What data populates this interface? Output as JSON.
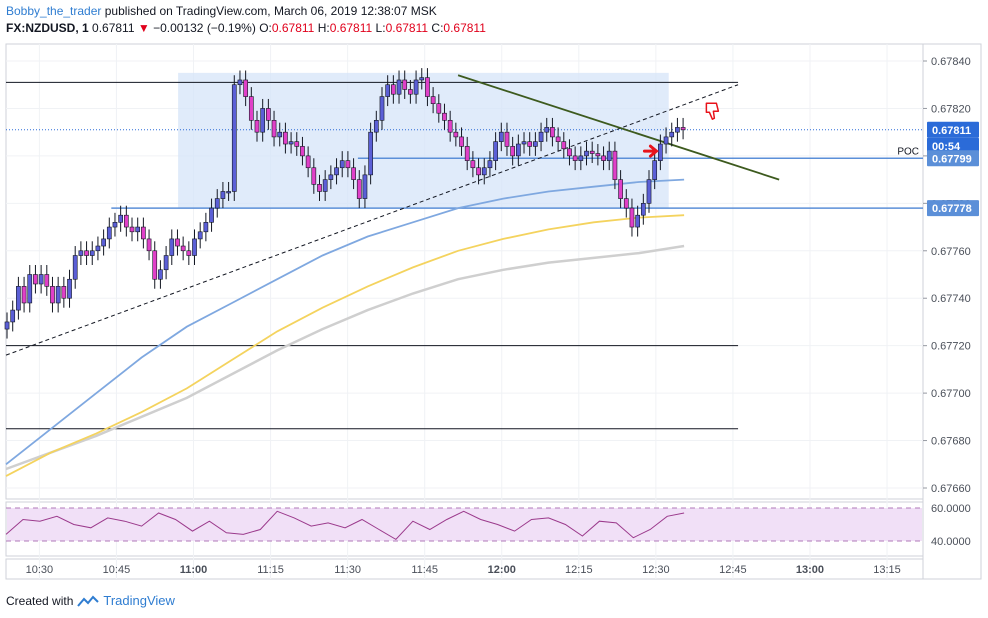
{
  "header": {
    "user": "Bobby_the_trader",
    "published": "published on TradingView.com, March 06, 2019 12:38:07 MSK",
    "symbol": "FX:NZDUSD, 1",
    "last": "0.67811",
    "change": "−0.00132 (−0.19%)",
    "open_label": "O:",
    "open": "0.67811",
    "high_label": "H:",
    "high": "0.67811",
    "low_label": "L:",
    "low": "0.67811",
    "close_label": "C:",
    "close": "0.67811"
  },
  "footer": {
    "created_with": "Created with",
    "brand": "TradingView"
  },
  "colors": {
    "bull": "#5b5fd6",
    "bear": "#e040c8",
    "ma_fast": "#7fa8e0",
    "ma_mid": "#f4d35e",
    "ma_slow": "#cfcfcf",
    "box": "#d6e4f8",
    "level": "#5b8fd8",
    "trend": "#3d5a1e",
    "price_tag": "#2b6bd8",
    "rsi_band": "#f1e0f7",
    "rsi_line": "#9b3a8c",
    "arrow": "#e8131b"
  },
  "chart_data": {
    "type": "candlestick",
    "y_axis": {
      "min": 0.6765,
      "max": 0.6785,
      "ticks": [
        "0.67840",
        "0.67820",
        "0.67800",
        "0.67780",
        "0.67760",
        "0.67740",
        "0.67720",
        "0.67700",
        "0.67680",
        "0.67660"
      ],
      "tick_values": [
        0.6784,
        0.6782,
        0.678,
        0.6778,
        0.6776,
        0.6774,
        0.6772,
        0.677,
        0.6768,
        0.6766
      ]
    },
    "x_axis": {
      "ticks": [
        "10:30",
        "10:45",
        "11:00",
        "11:15",
        "11:30",
        "11:45",
        "12:00",
        "12:15",
        "12:30",
        "12:45",
        "13:00",
        "13:15"
      ],
      "tick_minutes": [
        630,
        645,
        660,
        675,
        690,
        705,
        720,
        735,
        750,
        765,
        780,
        795
      ],
      "bold": [
        "11:00",
        "12:00",
        "13:00"
      ],
      "range": [
        623.5,
        802
      ]
    },
    "price_labels": [
      {
        "text": "0.67811",
        "value": 0.67811,
        "style": "last"
      },
      {
        "text": "00:54",
        "value": 0.67806,
        "style": "timer"
      },
      {
        "text": "0.67799",
        "value": 0.67799,
        "style": "level"
      },
      {
        "text": "0.67778",
        "value": 0.67778,
        "style": "level"
      }
    ],
    "poc_label": "POC",
    "horizontal_lines": [
      {
        "value": 0.67831,
        "color": "#131722"
      },
      {
        "value": 0.6772,
        "color": "#131722"
      },
      {
        "value": 0.67685,
        "color": "#131722"
      }
    ],
    "candles_close": [
      0.6773,
      0.67735,
      0.67745,
      0.67738,
      0.6775,
      0.67746,
      0.6775,
      0.67745,
      0.67738,
      0.67745,
      0.6774,
      0.67748,
      0.67758,
      0.6776,
      0.67758,
      0.6776,
      0.67762,
      0.67765,
      0.6777,
      0.67772,
      0.67775,
      0.6777,
      0.67768,
      0.6777,
      0.67765,
      0.6776,
      0.67748,
      0.67752,
      0.67758,
      0.67765,
      0.67762,
      0.6776,
      0.67758,
      0.67765,
      0.67768,
      0.67772,
      0.67778,
      0.67782,
      0.67785,
      0.67785,
      0.6783,
      0.67832,
      0.67825,
      0.67815,
      0.6781,
      0.6782,
      0.67815,
      0.67808,
      0.6781,
      0.67805,
      0.67806,
      0.67804,
      0.678,
      0.67795,
      0.67788,
      0.67785,
      0.6779,
      0.67792,
      0.67795,
      0.67798,
      0.67795,
      0.6779,
      0.67782,
      0.67792,
      0.6781,
      0.67815,
      0.67825,
      0.6783,
      0.67826,
      0.67832,
      0.67828,
      0.67826,
      0.67832,
      0.67833,
      0.67825,
      0.67822,
      0.67818,
      0.67815,
      0.6781,
      0.67808,
      0.67804,
      0.67798,
      0.67795,
      0.67792,
      0.67795,
      0.67798,
      0.67806,
      0.6781,
      0.67804,
      0.678,
      0.67805,
      0.67806,
      0.67804,
      0.67806,
      0.6781,
      0.67812,
      0.67808,
      0.67806,
      0.67803,
      0.678,
      0.67798,
      0.678,
      0.67802,
      0.67801,
      0.678,
      0.67798,
      0.67802,
      0.6779,
      0.67782,
      0.67778,
      0.6777,
      0.67775,
      0.6778,
      0.6779,
      0.67798,
      0.67805,
      0.67808,
      0.6781,
      0.67812,
      0.67811
    ],
    "ma_fast": [
      0.6767,
      0.67685,
      0.677,
      0.67715,
      0.67728,
      0.67738,
      0.67748,
      0.67758,
      0.67766,
      0.67772,
      0.67778,
      0.67782,
      0.67785,
      0.67787,
      0.67789,
      0.6779
    ],
    "ma_mid": [
      0.67665,
      0.67675,
      0.67683,
      0.67692,
      0.67702,
      0.67714,
      0.67726,
      0.67736,
      0.67745,
      0.67753,
      0.6776,
      0.67765,
      0.67769,
      0.67772,
      0.67774,
      0.67775
    ],
    "ma_slow": [
      0.67668,
      0.67675,
      0.67682,
      0.6769,
      0.67698,
      0.67708,
      0.67718,
      0.67727,
      0.67735,
      0.67742,
      0.67748,
      0.67752,
      0.67755,
      0.67757,
      0.67759,
      0.67762
    ],
    "rsi": {
      "ticks": [
        "60.0000",
        "40.0000"
      ],
      "values": [
        44,
        53,
        52,
        55,
        50,
        48,
        54,
        52,
        49,
        57,
        53,
        46,
        52,
        45,
        44,
        47,
        58,
        54,
        49,
        51,
        48,
        53,
        47,
        41,
        52,
        47,
        53,
        58,
        53,
        50,
        46,
        53,
        54,
        50,
        43,
        52,
        51,
        42,
        47,
        55,
        57
      ]
    }
  }
}
